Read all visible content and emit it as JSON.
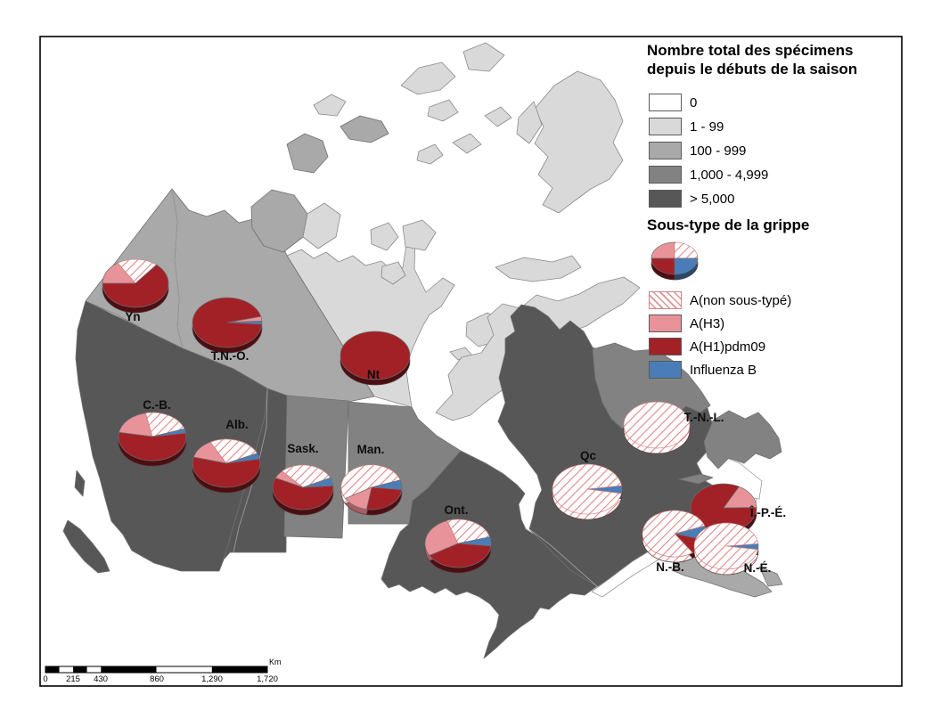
{
  "colors": {
    "h1": "#a12127",
    "h3": "#e8939a",
    "b": "#4a7db8",
    "h1_rim": "#4b0e13",
    "h3_rim": "#a85d63",
    "b_rim": "#27496b",
    "hatch_line": "#dd8888",
    "cat0": "#ffffff",
    "cat1": "#d9d9d9",
    "cat2": "#a9a9a9",
    "cat3": "#828282",
    "cat4": "#575757"
  },
  "title": {
    "line1": "Nombre total des spécimens",
    "line2": "depuis le débuts de la saison"
  },
  "subtype_title": "Sous-type de la grippe",
  "legend_categories": [
    {
      "label": "0",
      "color": "#ffffff"
    },
    {
      "label": "1 - 99",
      "color": "#d9d9d9"
    },
    {
      "label": "100 - 999",
      "color": "#a9a9a9"
    },
    {
      "label": "1,000 - 4,999",
      "color": "#828282"
    },
    {
      "label": "> 5,000",
      "color": "#575757"
    }
  ],
  "subtypes": [
    {
      "id": "nst",
      "label": "A(non sous-typé)",
      "color": "hatch"
    },
    {
      "id": "h3",
      "label": "A(H3)",
      "color": "#e8939a"
    },
    {
      "id": "h1",
      "label": "A(H1)pdm09",
      "color": "#a12127"
    },
    {
      "id": "b",
      "label": "Influenza B",
      "color": "#4a7db8"
    }
  ],
  "sample_pie": {
    "slices": [
      [
        "h3",
        25
      ],
      [
        "nst",
        25
      ],
      [
        "b",
        25
      ],
      [
        "h1",
        25
      ]
    ]
  },
  "scalebar": {
    "labels": [
      "0",
      "215",
      "430",
      "860",
      "1,290",
      "1,720"
    ],
    "unit": "Km"
  },
  "map": {
    "provinces": [
      {
        "id": "yn",
        "label": "Yn",
        "slices": [
          [
            "h3",
            16
          ],
          [
            "nst",
            20
          ],
          [
            "h1",
            64
          ]
        ]
      },
      {
        "id": "tno",
        "label": "T.N.-O.",
        "slices": [
          [
            "h3",
            3
          ],
          [
            "b",
            2
          ],
          [
            "h1",
            95
          ]
        ]
      },
      {
        "id": "nt",
        "label": "Nt",
        "slices": [
          [
            "h1",
            100
          ]
        ]
      },
      {
        "id": "cb",
        "label": "C.-B.",
        "slices": [
          [
            "h3",
            19
          ],
          [
            "nst",
            23
          ],
          [
            "b",
            3
          ],
          [
            "h1",
            55
          ]
        ]
      },
      {
        "id": "ab",
        "label": "Alb.",
        "slices": [
          [
            "h3",
            13
          ],
          [
            "nst",
            26
          ],
          [
            "b",
            4
          ],
          [
            "h1",
            57
          ]
        ]
      },
      {
        "id": "sk",
        "label": "Sask.",
        "slices": [
          [
            "h3",
            6
          ],
          [
            "nst",
            30
          ],
          [
            "b",
            6
          ],
          [
            "h1",
            58
          ]
        ]
      },
      {
        "id": "mb",
        "label": "Man.",
        "slices": [
          [
            "nst",
            53
          ],
          [
            "b",
            7
          ],
          [
            "h1",
            26
          ],
          [
            "h3",
            14
          ]
        ]
      },
      {
        "id": "on",
        "label": "Ont.",
        "slices": [
          [
            "h3",
            28
          ],
          [
            "nst",
            26
          ],
          [
            "b",
            6
          ],
          [
            "h1",
            40
          ]
        ]
      },
      {
        "id": "qc",
        "label": "Qc",
        "slices": [
          [
            "b",
            5
          ],
          [
            "nst",
            95
          ]
        ]
      },
      {
        "id": "tnl",
        "label": "T.-N.-L.",
        "slices": [
          [
            "nst",
            100
          ]
        ]
      },
      {
        "id": "ipe",
        "label": "Î.-P.-É.",
        "slices": [
          [
            "h3",
            17
          ],
          [
            "h1",
            83
          ]
        ]
      },
      {
        "id": "nb",
        "label": "N.-B.",
        "slices": [
          [
            "b",
            10
          ],
          [
            "h1",
            11
          ],
          [
            "nst",
            79
          ]
        ]
      },
      {
        "id": "ne",
        "label": "N.-É.",
        "slices": [
          [
            "b",
            4
          ],
          [
            "nst",
            96
          ]
        ]
      }
    ]
  }
}
